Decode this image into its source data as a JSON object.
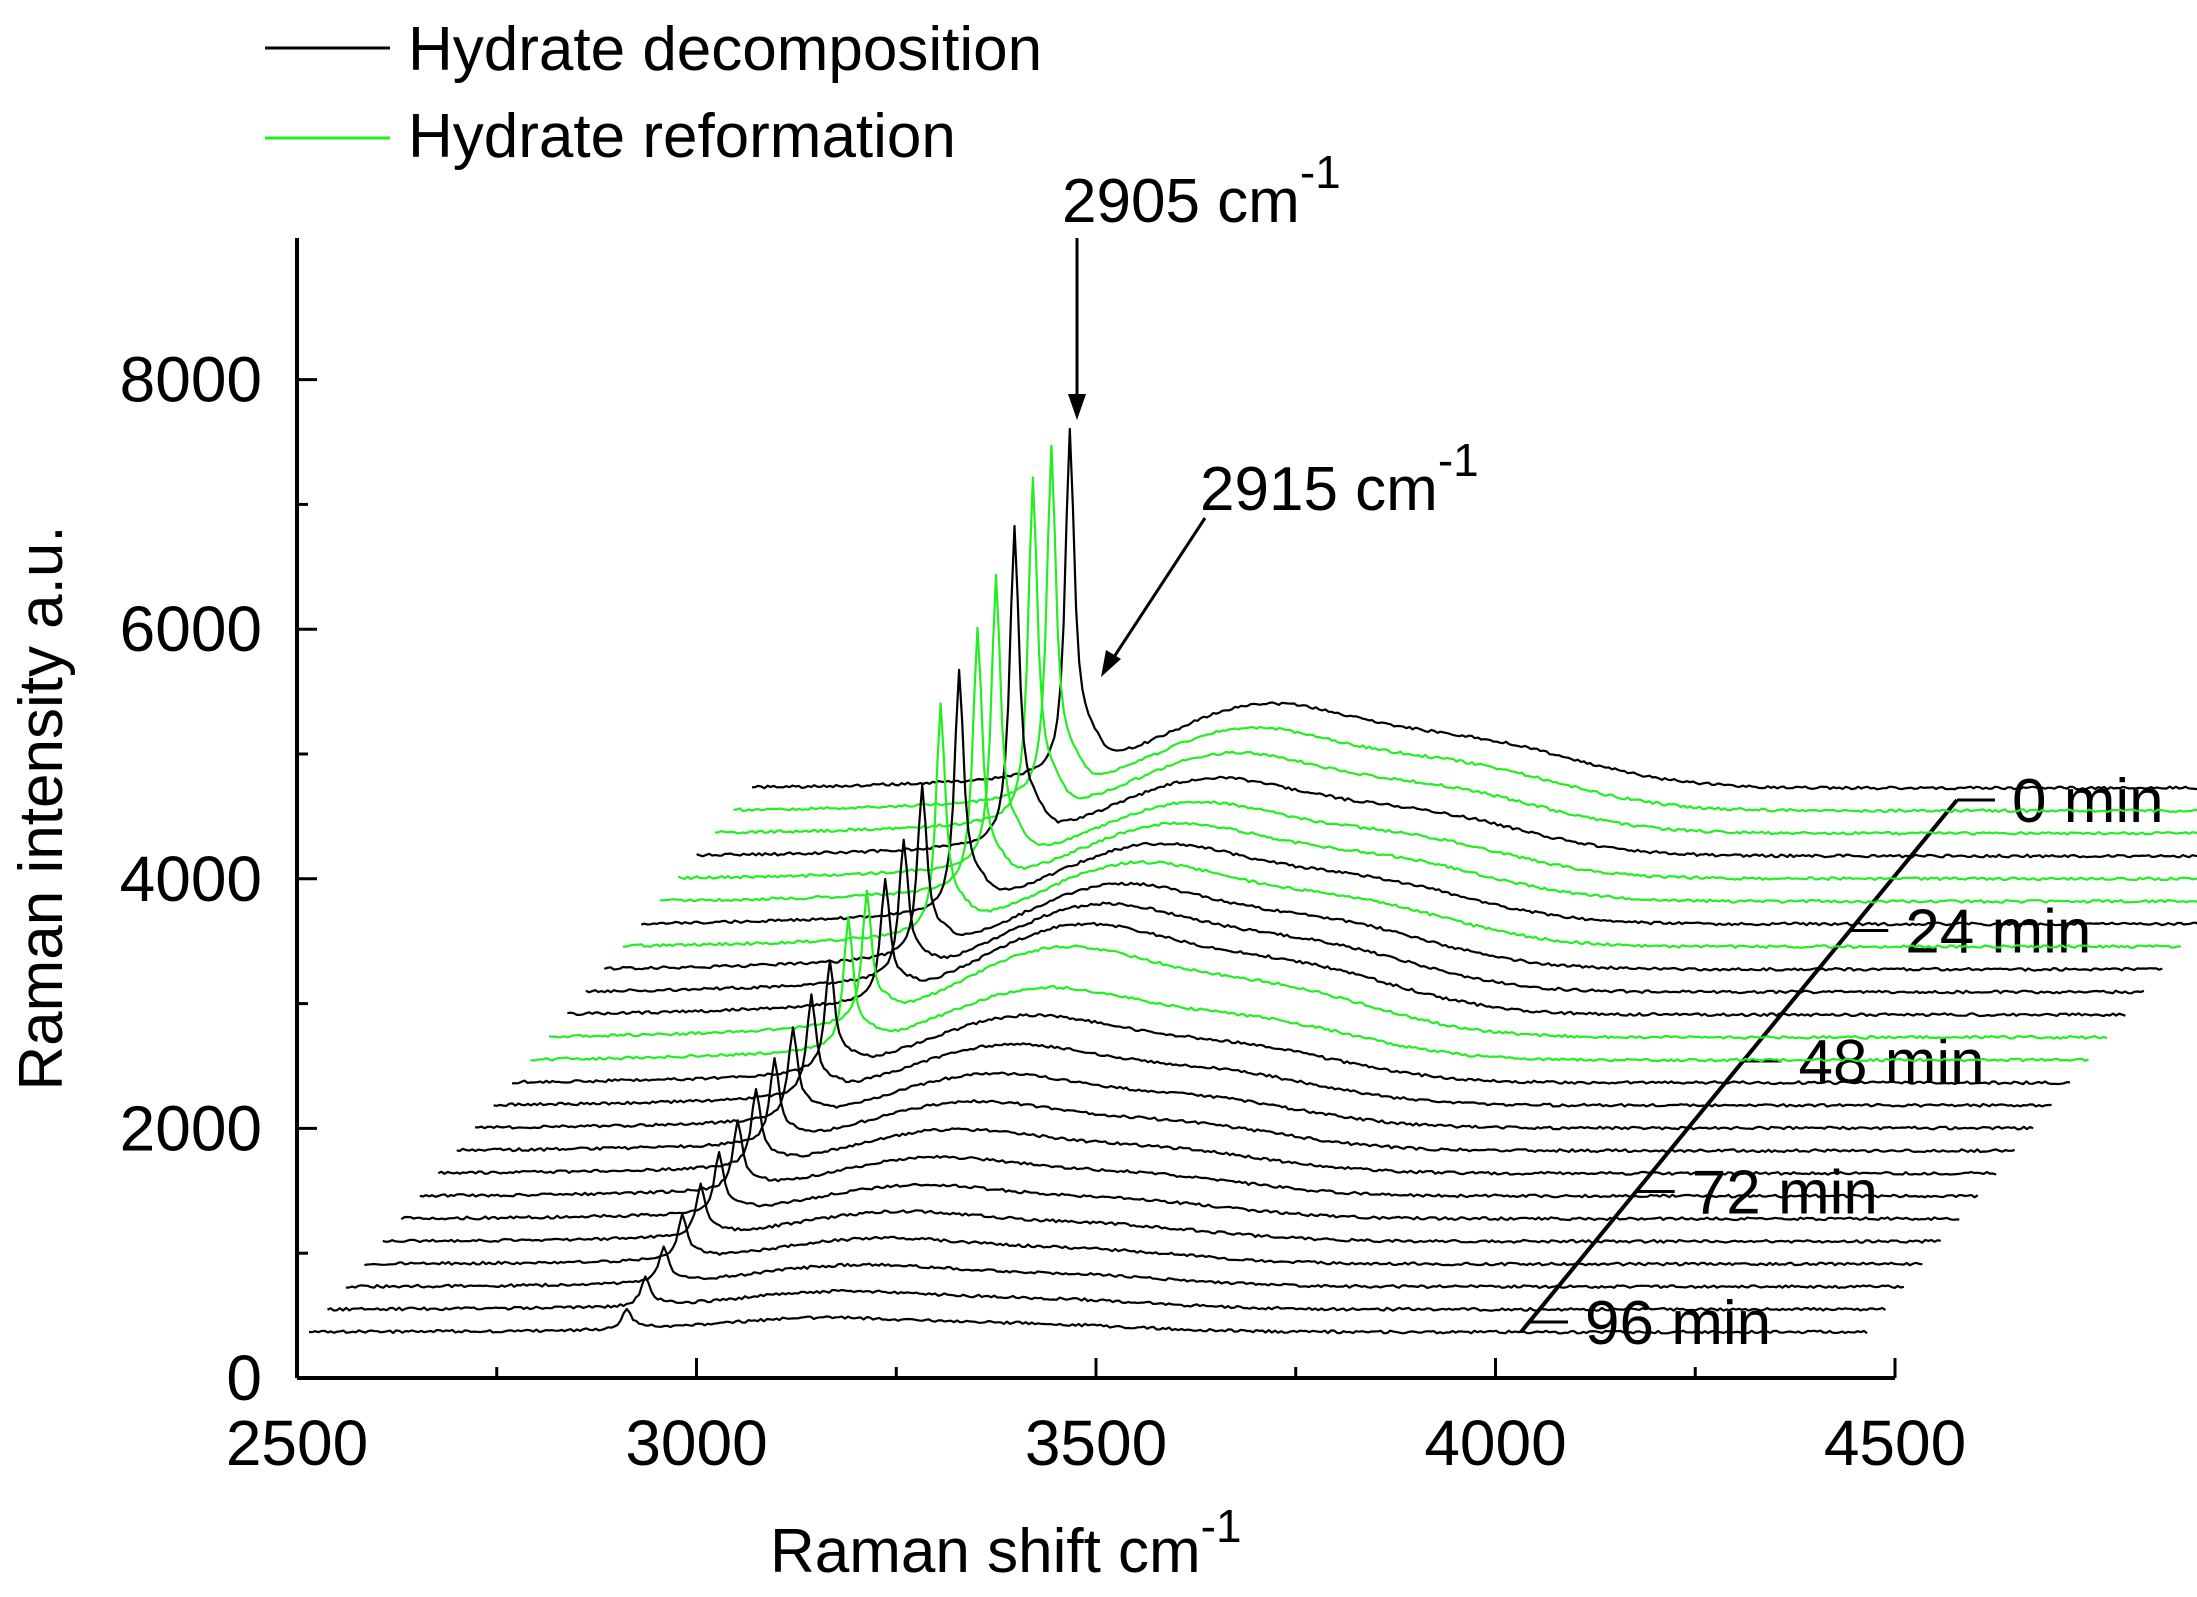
{
  "chart_data": {
    "type": "line",
    "subtype": "waterfall-3d",
    "title": "",
    "xlabel": "Raman shift cm",
    "xlabel_sup": "-1",
    "ylabel": "Raman intensity a.u.",
    "xlim": [
      2500,
      4500
    ],
    "ylim": [
      0,
      9000
    ],
    "x_ticks": [
      2500,
      3000,
      3500,
      4000,
      4500
    ],
    "x_minor_ticks": [
      2750,
      3250,
      3750,
      4250
    ],
    "y_ticks": [
      0,
      2000,
      4000,
      6000,
      8000
    ],
    "y_minor_ticks": [
      1000,
      3000,
      5000,
      7000
    ],
    "grid": false,
    "legend_position": "top-left",
    "legend": [
      {
        "label": "Hydrate decomposition",
        "color": "#000000"
      },
      {
        "label": "Hydrate reformation",
        "color": "#22ee22"
      }
    ],
    "time_axis": {
      "labels": [
        "0 min",
        "24 min",
        "48 min",
        "72 min",
        "96 min"
      ],
      "values": [
        0,
        24,
        48,
        72,
        96
      ],
      "unit": "min"
    },
    "annotations": [
      {
        "text": "2905 cm",
        "sup": "-1",
        "x": 2905
      },
      {
        "text": "2915 cm",
        "sup": "-1",
        "x": 2915
      }
    ],
    "series": [
      {
        "index": 0,
        "time": 0,
        "type": "decomposition",
        "color": "#000000",
        "peak_height": 2650,
        "ow_height": 650
      },
      {
        "index": 1,
        "time": 4,
        "type": "reformation",
        "color": "#22ee22",
        "peak_height": 2700,
        "ow_height": 640
      },
      {
        "index": 2,
        "time": 8,
        "type": "reformation",
        "color": "#22ee22",
        "peak_height": 2650,
        "ow_height": 620
      },
      {
        "index": 3,
        "time": 12,
        "type": "decomposition",
        "color": "#000000",
        "peak_height": 2450,
        "ow_height": 600
      },
      {
        "index": 4,
        "time": 16,
        "type": "reformation",
        "color": "#22ee22",
        "peak_height": 2250,
        "ow_height": 590
      },
      {
        "index": 5,
        "time": 20,
        "type": "reformation",
        "color": "#22ee22",
        "peak_height": 2000,
        "ow_height": 600
      },
      {
        "index": 6,
        "time": 24,
        "type": "decomposition",
        "color": "#000000",
        "peak_height": 1850,
        "ow_height": 620
      },
      {
        "index": 7,
        "time": 28,
        "type": "reformation",
        "color": "#22ee22",
        "peak_height": 1750,
        "ow_height": 650
      },
      {
        "index": 8,
        "time": 32,
        "type": "decomposition",
        "color": "#000000",
        "peak_height": 1300,
        "ow_height": 660
      },
      {
        "index": 9,
        "time": 36,
        "type": "decomposition",
        "color": "#000000",
        "peak_height": 1050,
        "ow_height": 680
      },
      {
        "index": 10,
        "time": 40,
        "type": "decomposition",
        "color": "#000000",
        "peak_height": 900,
        "ow_height": 700
      },
      {
        "index": 11,
        "time": 44,
        "type": "reformation",
        "color": "#22ee22",
        "peak_height": 1000,
        "ow_height": 700
      },
      {
        "index": 12,
        "time": 48,
        "type": "reformation",
        "color": "#22ee22",
        "peak_height": 1000,
        "ow_height": 560
      },
      {
        "index": 13,
        "time": 52,
        "type": "decomposition",
        "color": "#000000",
        "peak_height": 850,
        "ow_height": 520
      },
      {
        "index": 14,
        "time": 56,
        "type": "decomposition",
        "color": "#000000",
        "peak_height": 760,
        "ow_height": 470
      },
      {
        "index": 15,
        "time": 60,
        "type": "decomposition",
        "color": "#000000",
        "peak_height": 700,
        "ow_height": 420
      },
      {
        "index": 16,
        "time": 64,
        "type": "decomposition",
        "color": "#000000",
        "peak_height": 640,
        "ow_height": 380
      },
      {
        "index": 17,
        "time": 68,
        "type": "decomposition",
        "color": "#000000",
        "peak_height": 580,
        "ow_height": 340
      },
      {
        "index": 18,
        "time": 72,
        "type": "decomposition",
        "color": "#000000",
        "peak_height": 520,
        "ow_height": 300
      },
      {
        "index": 19,
        "time": 76,
        "type": "decomposition",
        "color": "#000000",
        "peak_height": 460,
        "ow_height": 260
      },
      {
        "index": 20,
        "time": 80,
        "type": "decomposition",
        "color": "#000000",
        "peak_height": 400,
        "ow_height": 230
      },
      {
        "index": 21,
        "time": 84,
        "type": "decomposition",
        "color": "#000000",
        "peak_height": 340,
        "ow_height": 200
      },
      {
        "index": 22,
        "time": 88,
        "type": "decomposition",
        "color": "#000000",
        "peak_height": 280,
        "ow_height": 170
      },
      {
        "index": 23,
        "time": 92,
        "type": "decomposition",
        "color": "#000000",
        "peak_height": 220,
        "ow_height": 140
      },
      {
        "index": 24,
        "time": 96,
        "type": "decomposition",
        "color": "#000000",
        "peak_height": 160,
        "ow_height": 110
      }
    ]
  }
}
